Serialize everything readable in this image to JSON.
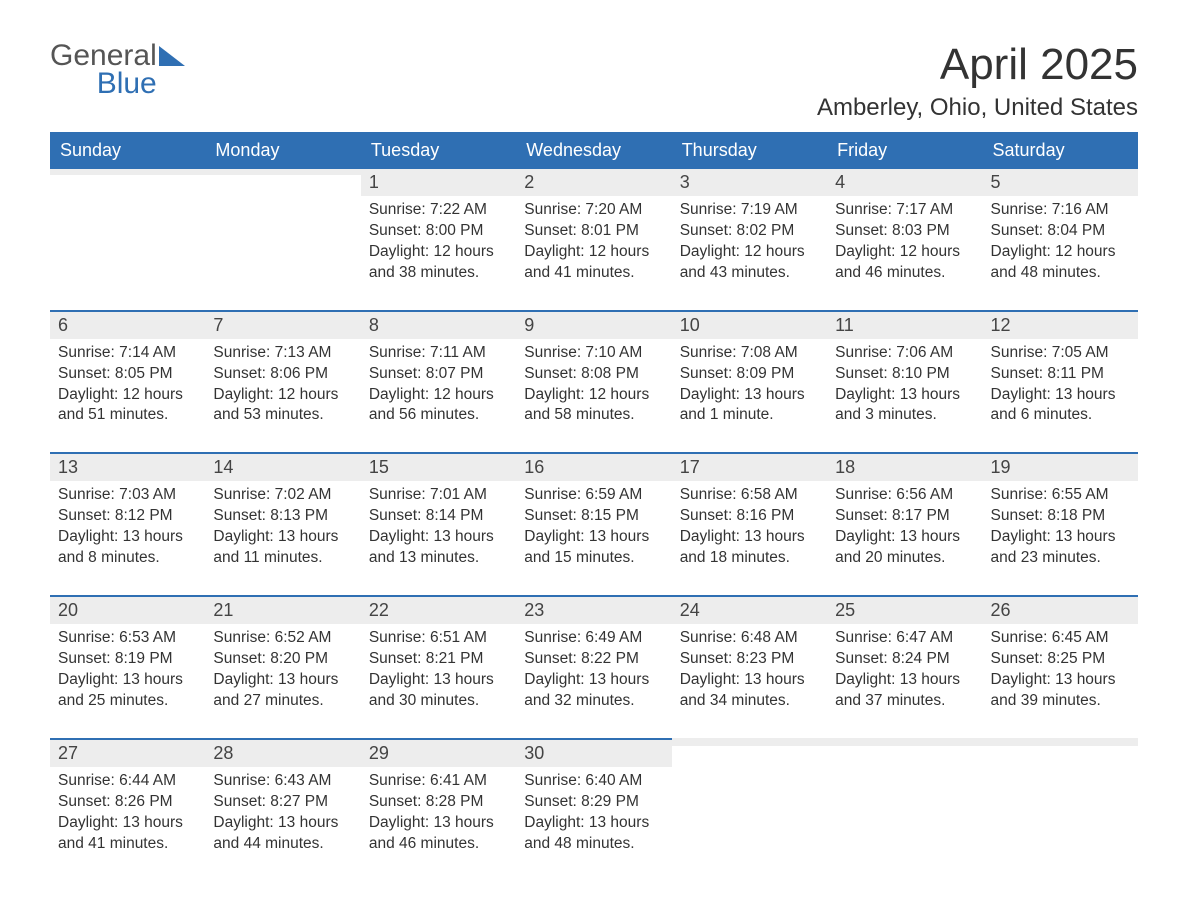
{
  "logo": {
    "general": "General",
    "blue": "Blue",
    "tri_color": "#2f6fb3"
  },
  "title": {
    "month": "April 2025",
    "location": "Amberley, Ohio, United States"
  },
  "colors": {
    "header_bg": "#2f6fb3",
    "header_text": "#ffffff",
    "daynum_bg": "#ededed",
    "text": "#333333"
  },
  "weekdays": [
    "Sunday",
    "Monday",
    "Tuesday",
    "Wednesday",
    "Thursday",
    "Friday",
    "Saturday"
  ],
  "weeks": [
    [
      {
        "n": "",
        "sunrise": "",
        "sunset": "",
        "daylight": ""
      },
      {
        "n": "",
        "sunrise": "",
        "sunset": "",
        "daylight": ""
      },
      {
        "n": "1",
        "sunrise": "Sunrise: 7:22 AM",
        "sunset": "Sunset: 8:00 PM",
        "daylight": "Daylight: 12 hours and 38 minutes."
      },
      {
        "n": "2",
        "sunrise": "Sunrise: 7:20 AM",
        "sunset": "Sunset: 8:01 PM",
        "daylight": "Daylight: 12 hours and 41 minutes."
      },
      {
        "n": "3",
        "sunrise": "Sunrise: 7:19 AM",
        "sunset": "Sunset: 8:02 PM",
        "daylight": "Daylight: 12 hours and 43 minutes."
      },
      {
        "n": "4",
        "sunrise": "Sunrise: 7:17 AM",
        "sunset": "Sunset: 8:03 PM",
        "daylight": "Daylight: 12 hours and 46 minutes."
      },
      {
        "n": "5",
        "sunrise": "Sunrise: 7:16 AM",
        "sunset": "Sunset: 8:04 PM",
        "daylight": "Daylight: 12 hours and 48 minutes."
      }
    ],
    [
      {
        "n": "6",
        "sunrise": "Sunrise: 7:14 AM",
        "sunset": "Sunset: 8:05 PM",
        "daylight": "Daylight: 12 hours and 51 minutes."
      },
      {
        "n": "7",
        "sunrise": "Sunrise: 7:13 AM",
        "sunset": "Sunset: 8:06 PM",
        "daylight": "Daylight: 12 hours and 53 minutes."
      },
      {
        "n": "8",
        "sunrise": "Sunrise: 7:11 AM",
        "sunset": "Sunset: 8:07 PM",
        "daylight": "Daylight: 12 hours and 56 minutes."
      },
      {
        "n": "9",
        "sunrise": "Sunrise: 7:10 AM",
        "sunset": "Sunset: 8:08 PM",
        "daylight": "Daylight: 12 hours and 58 minutes."
      },
      {
        "n": "10",
        "sunrise": "Sunrise: 7:08 AM",
        "sunset": "Sunset: 8:09 PM",
        "daylight": "Daylight: 13 hours and 1 minute."
      },
      {
        "n": "11",
        "sunrise": "Sunrise: 7:06 AM",
        "sunset": "Sunset: 8:10 PM",
        "daylight": "Daylight: 13 hours and 3 minutes."
      },
      {
        "n": "12",
        "sunrise": "Sunrise: 7:05 AM",
        "sunset": "Sunset: 8:11 PM",
        "daylight": "Daylight: 13 hours and 6 minutes."
      }
    ],
    [
      {
        "n": "13",
        "sunrise": "Sunrise: 7:03 AM",
        "sunset": "Sunset: 8:12 PM",
        "daylight": "Daylight: 13 hours and 8 minutes."
      },
      {
        "n": "14",
        "sunrise": "Sunrise: 7:02 AM",
        "sunset": "Sunset: 8:13 PM",
        "daylight": "Daylight: 13 hours and 11 minutes."
      },
      {
        "n": "15",
        "sunrise": "Sunrise: 7:01 AM",
        "sunset": "Sunset: 8:14 PM",
        "daylight": "Daylight: 13 hours and 13 minutes."
      },
      {
        "n": "16",
        "sunrise": "Sunrise: 6:59 AM",
        "sunset": "Sunset: 8:15 PM",
        "daylight": "Daylight: 13 hours and 15 minutes."
      },
      {
        "n": "17",
        "sunrise": "Sunrise: 6:58 AM",
        "sunset": "Sunset: 8:16 PM",
        "daylight": "Daylight: 13 hours and 18 minutes."
      },
      {
        "n": "18",
        "sunrise": "Sunrise: 6:56 AM",
        "sunset": "Sunset: 8:17 PM",
        "daylight": "Daylight: 13 hours and 20 minutes."
      },
      {
        "n": "19",
        "sunrise": "Sunrise: 6:55 AM",
        "sunset": "Sunset: 8:18 PM",
        "daylight": "Daylight: 13 hours and 23 minutes."
      }
    ],
    [
      {
        "n": "20",
        "sunrise": "Sunrise: 6:53 AM",
        "sunset": "Sunset: 8:19 PM",
        "daylight": "Daylight: 13 hours and 25 minutes."
      },
      {
        "n": "21",
        "sunrise": "Sunrise: 6:52 AM",
        "sunset": "Sunset: 8:20 PM",
        "daylight": "Daylight: 13 hours and 27 minutes."
      },
      {
        "n": "22",
        "sunrise": "Sunrise: 6:51 AM",
        "sunset": "Sunset: 8:21 PM",
        "daylight": "Daylight: 13 hours and 30 minutes."
      },
      {
        "n": "23",
        "sunrise": "Sunrise: 6:49 AM",
        "sunset": "Sunset: 8:22 PM",
        "daylight": "Daylight: 13 hours and 32 minutes."
      },
      {
        "n": "24",
        "sunrise": "Sunrise: 6:48 AM",
        "sunset": "Sunset: 8:23 PM",
        "daylight": "Daylight: 13 hours and 34 minutes."
      },
      {
        "n": "25",
        "sunrise": "Sunrise: 6:47 AM",
        "sunset": "Sunset: 8:24 PM",
        "daylight": "Daylight: 13 hours and 37 minutes."
      },
      {
        "n": "26",
        "sunrise": "Sunrise: 6:45 AM",
        "sunset": "Sunset: 8:25 PM",
        "daylight": "Daylight: 13 hours and 39 minutes."
      }
    ],
    [
      {
        "n": "27",
        "sunrise": "Sunrise: 6:44 AM",
        "sunset": "Sunset: 8:26 PM",
        "daylight": "Daylight: 13 hours and 41 minutes."
      },
      {
        "n": "28",
        "sunrise": "Sunrise: 6:43 AM",
        "sunset": "Sunset: 8:27 PM",
        "daylight": "Daylight: 13 hours and 44 minutes."
      },
      {
        "n": "29",
        "sunrise": "Sunrise: 6:41 AM",
        "sunset": "Sunset: 8:28 PM",
        "daylight": "Daylight: 13 hours and 46 minutes."
      },
      {
        "n": "30",
        "sunrise": "Sunrise: 6:40 AM",
        "sunset": "Sunset: 8:29 PM",
        "daylight": "Daylight: 13 hours and 48 minutes."
      },
      {
        "n": "",
        "sunrise": "",
        "sunset": "",
        "daylight": ""
      },
      {
        "n": "",
        "sunrise": "",
        "sunset": "",
        "daylight": ""
      },
      {
        "n": "",
        "sunrise": "",
        "sunset": "",
        "daylight": ""
      }
    ]
  ]
}
